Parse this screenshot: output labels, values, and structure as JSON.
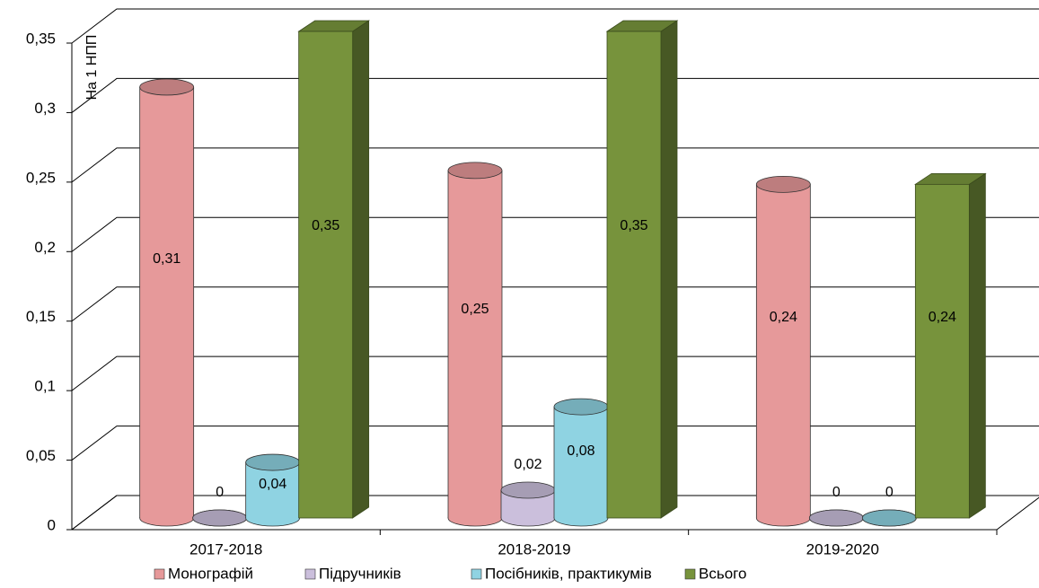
{
  "chart_data": {
    "type": "bar3d",
    "y_label": "На 1 НПП",
    "categories": [
      "2017-2018",
      "2018-2019",
      "2019-2020"
    ],
    "series": [
      {
        "name": "Монографій",
        "color": "#e6999a",
        "values": [
          0.31,
          0.25,
          0.24
        ],
        "value_labels": [
          "0,31",
          "0,25",
          "0,24"
        ]
      },
      {
        "name": "Підручників",
        "color": "#cbbfdc",
        "values": [
          0,
          0.02,
          0
        ],
        "value_labels": [
          "0",
          "0,02",
          "0"
        ]
      },
      {
        "name": "Посібників, практикумів",
        "color": "#8fd3e2",
        "values": [
          0.04,
          0.08,
          0
        ],
        "value_labels": [
          "0,04",
          "0,08",
          "0"
        ]
      },
      {
        "name": "Всього",
        "color": "#77933c",
        "values": [
          0.35,
          0.35,
          0.24
        ],
        "value_labels": [
          "0,35",
          "0,35",
          "0,24"
        ]
      }
    ],
    "ylim": [
      0,
      0.35
    ],
    "yticks": [
      0,
      {
        "value": 0.05,
        "label": "0,05"
      },
      {
        "value": 0.1,
        "label": "0,1"
      },
      {
        "value": 0.15,
        "label": "0,15"
      },
      {
        "value": 0.2,
        "label": "0,2"
      },
      {
        "value": 0.25,
        "label": "0,25"
      },
      {
        "value": 0.3,
        "label": "0,3"
      },
      {
        "value": 0.35,
        "label": "0,35"
      }
    ],
    "grid": true,
    "legend": "bottom"
  }
}
